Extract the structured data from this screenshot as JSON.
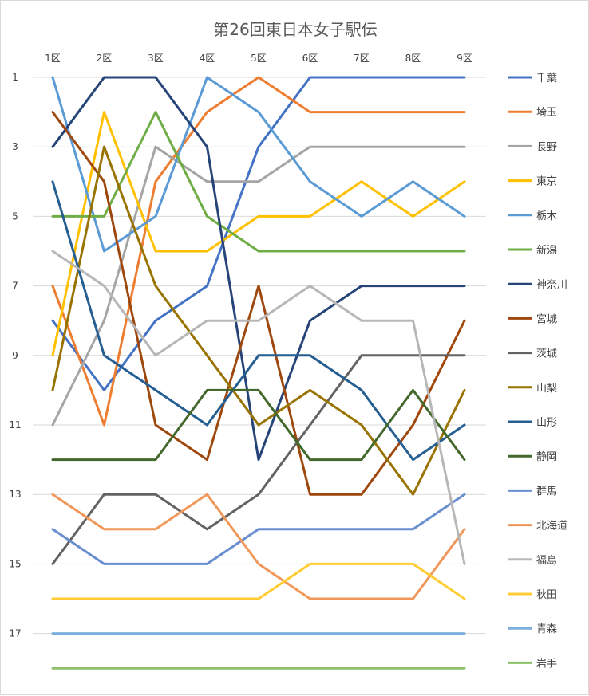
{
  "chart_data": {
    "type": "line",
    "title": "第26回東日本女子駅伝",
    "categories": [
      "1区",
      "2区",
      "3区",
      "4区",
      "5区",
      "6区",
      "7区",
      "8区",
      "9区"
    ],
    "y_ticks": [
      "1",
      "3",
      "5",
      "7",
      "9",
      "11",
      "13",
      "15",
      "17"
    ],
    "ylim": [
      1,
      18
    ],
    "y_reversed": true,
    "grid": true,
    "legend_position": "right",
    "series": [
      {
        "name": "千葉",
        "color": "#4472C4",
        "values": [
          8,
          10,
          8,
          7,
          3,
          1,
          1,
          1,
          1
        ]
      },
      {
        "name": "埼玉",
        "color": "#ED7D31",
        "values": [
          7,
          11,
          4,
          2,
          1,
          2,
          2,
          2,
          2
        ]
      },
      {
        "name": "長野",
        "color": "#A5A5A5",
        "values": [
          11,
          8,
          3,
          4,
          4,
          3,
          3,
          3,
          3
        ]
      },
      {
        "name": "東京",
        "color": "#FFC000",
        "values": [
          9,
          2,
          6,
          6,
          5,
          5,
          4,
          5,
          4
        ]
      },
      {
        "name": "栃木",
        "color": "#5B9BD5",
        "values": [
          1,
          6,
          5,
          1,
          2,
          4,
          5,
          4,
          5
        ]
      },
      {
        "name": "新潟",
        "color": "#70AD47",
        "values": [
          5,
          5,
          2,
          5,
          6,
          6,
          6,
          6,
          6
        ]
      },
      {
        "name": "神奈川",
        "color": "#264478",
        "values": [
          3,
          1,
          1,
          3,
          12,
          8,
          7,
          7,
          7
        ]
      },
      {
        "name": "宮城",
        "color": "#9E480E",
        "values": [
          2,
          4,
          11,
          12,
          7,
          13,
          13,
          11,
          8
        ]
      },
      {
        "name": "茨城",
        "color": "#636363",
        "values": [
          15,
          13,
          13,
          14,
          13,
          11,
          9,
          9,
          9
        ]
      },
      {
        "name": "山梨",
        "color": "#997300",
        "values": [
          10,
          3,
          7,
          9,
          11,
          10,
          11,
          13,
          10
        ]
      },
      {
        "name": "山形",
        "color": "#255E91",
        "values": [
          4,
          9,
          10,
          11,
          9,
          9,
          10,
          12,
          11
        ]
      },
      {
        "name": "静岡",
        "color": "#43682B",
        "values": [
          12,
          12,
          12,
          10,
          10,
          12,
          12,
          10,
          12
        ]
      },
      {
        "name": "群馬",
        "color": "#698ED0",
        "values": [
          14,
          15,
          15,
          15,
          14,
          14,
          14,
          14,
          13
        ]
      },
      {
        "name": "北海道",
        "color": "#F1975A",
        "values": [
          13,
          14,
          14,
          13,
          15,
          16,
          16,
          16,
          14
        ]
      },
      {
        "name": "福島",
        "color": "#B7B7B7",
        "values": [
          6,
          7,
          9,
          8,
          8,
          7,
          8,
          8,
          15
        ]
      },
      {
        "name": "秋田",
        "color": "#FFCD33",
        "values": [
          16,
          16,
          16,
          16,
          16,
          15,
          15,
          15,
          16
        ]
      },
      {
        "name": "青森",
        "color": "#7CAFDD",
        "values": [
          17,
          17,
          17,
          17,
          17,
          17,
          17,
          17,
          17
        ]
      },
      {
        "name": "岩手",
        "color": "#8CC168",
        "values": [
          18,
          18,
          18,
          18,
          18,
          18,
          18,
          18,
          18
        ]
      }
    ]
  }
}
